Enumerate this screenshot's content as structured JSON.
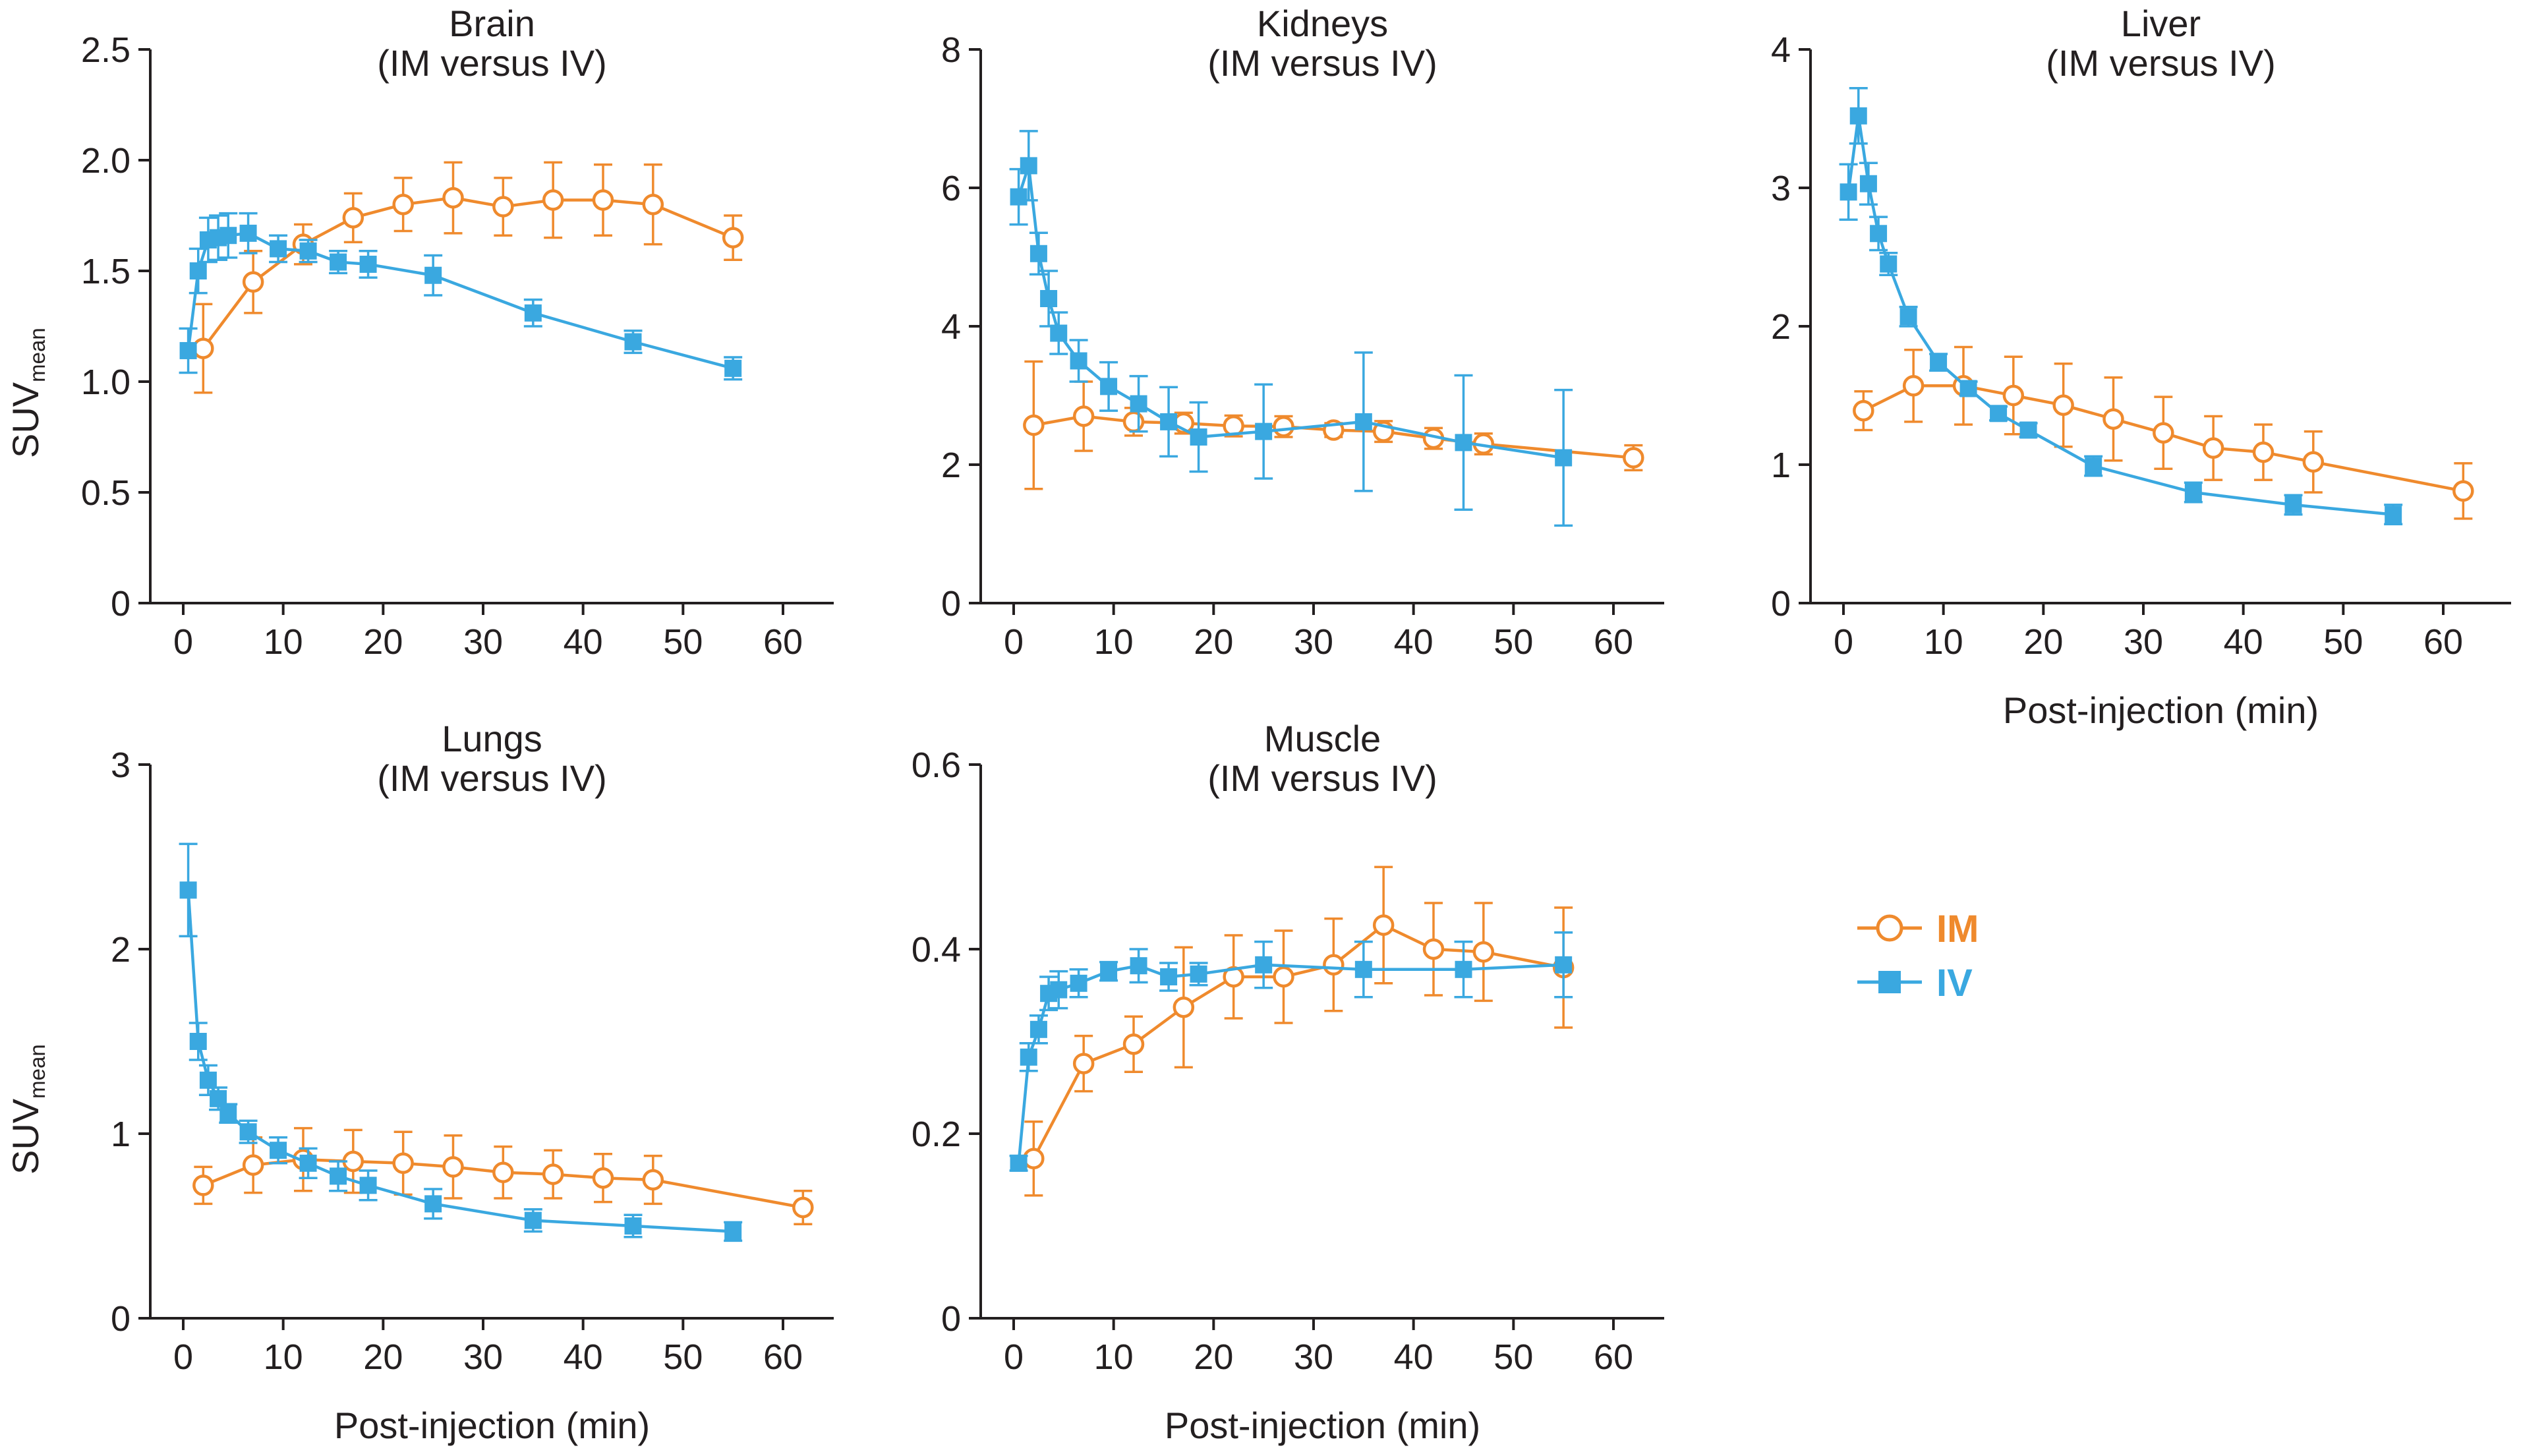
{
  "colors": {
    "IM": "#ef8a2d",
    "IV": "#3aa8e0",
    "axis": "#231f20"
  },
  "legend": [
    {
      "key": "IM",
      "label": "IM",
      "marker": "open-circle"
    },
    {
      "key": "IV",
      "label": "IV",
      "marker": "filled-square"
    }
  ],
  "ylabel_main": "SUV",
  "ylabel_sub": "mean",
  "chart_data": [
    {
      "type": "line",
      "title": "Brain",
      "subtitle": "(IM versus IV)",
      "xlabel": "",
      "ylabel": "SUVmean",
      "xlim": [
        0,
        62
      ],
      "ylim": [
        0,
        2.5
      ],
      "xticks": [
        0,
        10,
        20,
        30,
        40,
        50,
        60
      ],
      "yticks": [
        0,
        0.5,
        1.0,
        1.5,
        2.0,
        2.5
      ],
      "ytick_labels": [
        "0",
        "0.5",
        "1.0",
        "1.5",
        "2.0",
        "2.5"
      ],
      "series": [
        {
          "name": "IM",
          "x": [
            2,
            7,
            12,
            17,
            22,
            27,
            32,
            37,
            42,
            47,
            55
          ],
          "y": [
            1.15,
            1.45,
            1.62,
            1.74,
            1.8,
            1.83,
            1.79,
            1.82,
            1.82,
            1.8,
            1.65
          ],
          "err": [
            0.2,
            0.14,
            0.09,
            0.11,
            0.12,
            0.16,
            0.13,
            0.17,
            0.16,
            0.18,
            0.1
          ]
        },
        {
          "name": "IV",
          "x": [
            0.5,
            1.5,
            2.5,
            3.5,
            4.5,
            6.5,
            9.5,
            12.5,
            15.5,
            18.5,
            25,
            35,
            45,
            55
          ],
          "y": [
            1.14,
            1.5,
            1.64,
            1.65,
            1.66,
            1.67,
            1.6,
            1.59,
            1.54,
            1.53,
            1.48,
            1.31,
            1.18,
            1.06
          ],
          "err": [
            0.1,
            0.1,
            0.1,
            0.1,
            0.1,
            0.09,
            0.06,
            0.05,
            0.05,
            0.06,
            0.09,
            0.06,
            0.05,
            0.05
          ]
        }
      ]
    },
    {
      "type": "line",
      "title": "Kidneys",
      "subtitle": "(IM versus IV)",
      "xlabel": "",
      "ylabel": "",
      "xlim": [
        0,
        62
      ],
      "ylim": [
        0,
        8
      ],
      "xticks": [
        0,
        10,
        20,
        30,
        40,
        50,
        60
      ],
      "yticks": [
        0,
        2,
        4,
        6,
        8
      ],
      "ytick_labels": [
        "0",
        "2",
        "4",
        "6",
        "8"
      ],
      "series": [
        {
          "name": "IM",
          "x": [
            2,
            7,
            12,
            17,
            22,
            27,
            32,
            37,
            42,
            47,
            62
          ],
          "y": [
            2.57,
            2.7,
            2.62,
            2.6,
            2.56,
            2.55,
            2.5,
            2.48,
            2.38,
            2.3,
            2.1
          ],
          "err": [
            0.92,
            0.5,
            0.2,
            0.15,
            0.15,
            0.15,
            0.1,
            0.15,
            0.15,
            0.15,
            0.18
          ]
        },
        {
          "name": "IV",
          "x": [
            0.5,
            1.5,
            2.5,
            3.5,
            4.5,
            6.5,
            9.5,
            12.5,
            15.5,
            18.5,
            25,
            35,
            45,
            55
          ],
          "y": [
            5.87,
            6.32,
            5.05,
            4.4,
            3.9,
            3.5,
            3.13,
            2.88,
            2.62,
            2.4,
            2.48,
            2.62,
            2.32,
            2.1
          ],
          "err": [
            0.4,
            0.5,
            0.3,
            0.4,
            0.3,
            0.3,
            0.35,
            0.4,
            0.5,
            0.5,
            0.68,
            1.0,
            0.97,
            0.98
          ]
        }
      ]
    },
    {
      "type": "line",
      "title": "Liver",
      "subtitle": "(IM versus IV)",
      "xlabel": "Post-injection (min)",
      "ylabel": "",
      "xlim": [
        0,
        62
      ],
      "ylim": [
        0,
        4
      ],
      "xticks": [
        0,
        10,
        20,
        30,
        40,
        50,
        60
      ],
      "yticks": [
        0,
        1,
        2,
        3,
        4
      ],
      "ytick_labels": [
        "0",
        "1",
        "2",
        "3",
        "4"
      ],
      "series": [
        {
          "name": "IM",
          "x": [
            2,
            7,
            12,
            17,
            22,
            27,
            32,
            37,
            42,
            47,
            62
          ],
          "y": [
            1.39,
            1.57,
            1.57,
            1.5,
            1.43,
            1.33,
            1.23,
            1.12,
            1.09,
            1.02,
            0.81
          ],
          "err": [
            0.14,
            0.26,
            0.28,
            0.28,
            0.3,
            0.3,
            0.26,
            0.23,
            0.2,
            0.22,
            0.2
          ]
        },
        {
          "name": "IV",
          "x": [
            0.5,
            1.5,
            2.5,
            3.5,
            4.5,
            6.5,
            9.5,
            12.5,
            15.5,
            18.5,
            25,
            35,
            45,
            55
          ],
          "y": [
            2.97,
            3.52,
            3.03,
            2.67,
            2.45,
            2.07,
            1.74,
            1.55,
            1.37,
            1.25,
            0.99,
            0.8,
            0.71,
            0.64
          ],
          "err": [
            0.2,
            0.2,
            0.15,
            0.12,
            0.08,
            0.07,
            0.06,
            0.05,
            0.05,
            0.05,
            0.07,
            0.07,
            0.07,
            0.07
          ]
        }
      ]
    },
    {
      "type": "line",
      "title": "Lungs",
      "subtitle": "(IM versus IV)",
      "xlabel": "Post-injection (min)",
      "ylabel": "SUVmean",
      "xlim": [
        0,
        62
      ],
      "ylim": [
        0,
        3
      ],
      "xticks": [
        0,
        10,
        20,
        30,
        40,
        50,
        60
      ],
      "yticks": [
        0,
        1,
        2,
        3
      ],
      "ytick_labels": [
        "0",
        "1",
        "2",
        "3"
      ],
      "series": [
        {
          "name": "IM",
          "x": [
            2,
            7,
            12,
            17,
            22,
            27,
            32,
            37,
            42,
            47,
            62
          ],
          "y": [
            0.72,
            0.83,
            0.86,
            0.85,
            0.84,
            0.82,
            0.79,
            0.78,
            0.76,
            0.75,
            0.6
          ],
          "err": [
            0.1,
            0.15,
            0.17,
            0.17,
            0.17,
            0.17,
            0.14,
            0.13,
            0.13,
            0.13,
            0.09
          ]
        },
        {
          "name": "IV",
          "x": [
            0.5,
            1.5,
            2.5,
            3.5,
            4.5,
            6.5,
            9.5,
            12.5,
            15.5,
            18.5,
            25,
            35,
            45,
            55
          ],
          "y": [
            2.32,
            1.5,
            1.29,
            1.19,
            1.11,
            1.01,
            0.91,
            0.84,
            0.77,
            0.72,
            0.62,
            0.53,
            0.5,
            0.47
          ],
          "err": [
            0.25,
            0.1,
            0.08,
            0.06,
            0.05,
            0.06,
            0.07,
            0.08,
            0.08,
            0.08,
            0.08,
            0.06,
            0.06,
            0.05
          ]
        }
      ]
    },
    {
      "type": "line",
      "title": "Muscle",
      "subtitle": "(IM versus IV)",
      "xlabel": "Post-injection (min)",
      "ylabel": "",
      "xlim": [
        0,
        62
      ],
      "ylim": [
        0,
        0.6
      ],
      "xticks": [
        0,
        10,
        20,
        30,
        40,
        50,
        60
      ],
      "yticks": [
        0,
        0.2,
        0.4,
        0.6
      ],
      "ytick_labels": [
        "0",
        "0.2",
        "0.4",
        "0.6"
      ],
      "series": [
        {
          "name": "IM",
          "x": [
            2,
            7,
            12,
            17,
            22,
            27,
            32,
            37,
            42,
            47,
            55
          ],
          "y": [
            0.173,
            0.276,
            0.297,
            0.337,
            0.37,
            0.37,
            0.383,
            0.426,
            0.4,
            0.397,
            0.38
          ],
          "err": [
            0.04,
            0.03,
            0.03,
            0.065,
            0.045,
            0.05,
            0.05,
            0.063,
            0.05,
            0.053,
            0.065
          ]
        },
        {
          "name": "IV",
          "x": [
            0.5,
            1.5,
            2.5,
            3.5,
            4.5,
            6.5,
            9.5,
            12.5,
            15.5,
            18.5,
            25,
            35,
            45,
            55
          ],
          "y": [
            0.168,
            0.283,
            0.313,
            0.352,
            0.356,
            0.363,
            0.376,
            0.382,
            0.37,
            0.373,
            0.383,
            0.378,
            0.378,
            0.383
          ],
          "err": [
            0.008,
            0.015,
            0.015,
            0.018,
            0.02,
            0.015,
            0.01,
            0.018,
            0.015,
            0.012,
            0.025,
            0.03,
            0.03,
            0.035
          ]
        }
      ]
    }
  ]
}
